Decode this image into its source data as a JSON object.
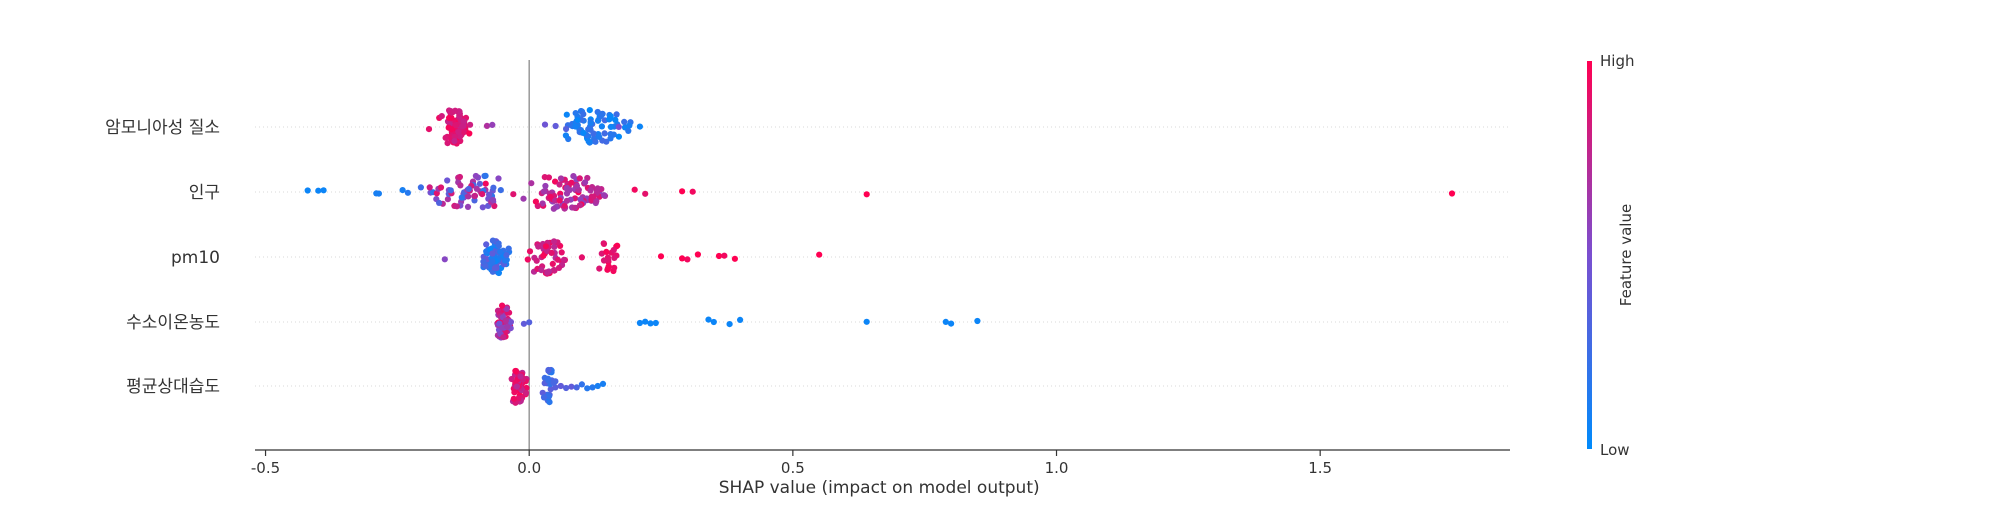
{
  "chart_data": {
    "type": "scatter",
    "subtype": "shap-beeswarm",
    "title": "",
    "xlabel": "SHAP value (impact on model output)",
    "xlim": [
      -0.52,
      1.86
    ],
    "xticks": [
      -0.5,
      0.0,
      0.5,
      1.0,
      1.5
    ],
    "xtick_labels": [
      "-0.5",
      "0.0",
      "0.5",
      "1.0",
      "1.5"
    ],
    "zero_line": 0.0,
    "grid": false,
    "colorbar": {
      "label": "Feature value",
      "high_label": "High",
      "low_label": "Low",
      "high_color": "#ff0052",
      "mid_color": "#7a4fd0",
      "low_color": "#008bfb",
      "placement": "right"
    },
    "features": [
      {
        "name": "암모니아성 질소",
        "clusters": [
          {
            "x_min": -0.18,
            "x_max": -0.1,
            "center": -0.145,
            "count": 85,
            "v_min": 0.75,
            "v_max": 1.0
          },
          {
            "x_min": 0.03,
            "x_max": 0.21,
            "center": 0.12,
            "count": 75,
            "v_min": 0.0,
            "v_max": 0.3
          }
        ],
        "points": [
          {
            "x": -0.19,
            "v": 0.9
          },
          {
            "x": -0.08,
            "v": 0.7
          },
          {
            "x": -0.07,
            "v": 0.6
          },
          {
            "x": 0.03,
            "v": 0.45
          },
          {
            "x": 0.05,
            "v": 0.4
          },
          {
            "x": 0.07,
            "v": 0.35
          },
          {
            "x": 0.17,
            "v": 0.5
          },
          {
            "x": 0.19,
            "v": 0.1
          },
          {
            "x": 0.21,
            "v": 0.05
          }
        ]
      },
      {
        "name": "인구",
        "clusters": [
          {
            "x_min": -0.22,
            "x_max": -0.01,
            "center": -0.1,
            "count": 70,
            "v_min": 0.1,
            "v_max": 1.0
          },
          {
            "x_min": -0.02,
            "x_max": 0.18,
            "center": 0.06,
            "count": 95,
            "v_min": 0.55,
            "v_max": 1.0
          }
        ],
        "points": [
          {
            "x": -0.42,
            "v": 0.05
          },
          {
            "x": -0.4,
            "v": 0.05
          },
          {
            "x": -0.39,
            "v": 0.05
          },
          {
            "x": -0.29,
            "v": 0.1
          },
          {
            "x": -0.285,
            "v": 0.1
          },
          {
            "x": -0.24,
            "v": 0.1
          },
          {
            "x": -0.23,
            "v": 0.15
          },
          {
            "x": 0.2,
            "v": 0.95
          },
          {
            "x": 0.22,
            "v": 0.9
          },
          {
            "x": 0.29,
            "v": 1.0
          },
          {
            "x": 0.31,
            "v": 0.95
          },
          {
            "x": 0.64,
            "v": 1.0
          },
          {
            "x": 1.75,
            "v": 1.0
          }
        ]
      },
      {
        "name": "pm10",
        "clusters": [
          {
            "x_min": -0.1,
            "x_max": -0.03,
            "center": -0.065,
            "count": 70,
            "v_min": 0.0,
            "v_max": 0.45
          },
          {
            "x_min": -0.02,
            "x_max": 0.09,
            "center": 0.03,
            "count": 45,
            "v_min": 0.7,
            "v_max": 1.0
          },
          {
            "x_min": 0.12,
            "x_max": 0.18,
            "center": 0.15,
            "count": 20,
            "v_min": 0.85,
            "v_max": 1.0
          }
        ],
        "points": [
          {
            "x": -0.16,
            "v": 0.55
          },
          {
            "x": 0.1,
            "v": 0.9
          },
          {
            "x": 0.25,
            "v": 1.0
          },
          {
            "x": 0.29,
            "v": 1.0
          },
          {
            "x": 0.3,
            "v": 0.95
          },
          {
            "x": 0.32,
            "v": 1.0
          },
          {
            "x": 0.36,
            "v": 1.0
          },
          {
            "x": 0.37,
            "v": 0.95
          },
          {
            "x": 0.39,
            "v": 1.0
          },
          {
            "x": 0.55,
            "v": 1.0
          }
        ]
      },
      {
        "name": "수소이온농도",
        "clusters": [
          {
            "x_min": -0.07,
            "x_max": -0.03,
            "center": -0.05,
            "count": 60,
            "v_min": 0.4,
            "v_max": 1.0
          }
        ],
        "points": [
          {
            "x": -0.01,
            "v": 0.4
          },
          {
            "x": 0.0,
            "v": 0.35
          },
          {
            "x": 0.21,
            "v": 0.05
          },
          {
            "x": 0.22,
            "v": 0.05
          },
          {
            "x": 0.23,
            "v": 0.05
          },
          {
            "x": 0.24,
            "v": 0.05
          },
          {
            "x": 0.34,
            "v": 0.05
          },
          {
            "x": 0.35,
            "v": 0.05
          },
          {
            "x": 0.38,
            "v": 0.05
          },
          {
            "x": 0.4,
            "v": 0.05
          },
          {
            "x": 0.64,
            "v": 0.05
          },
          {
            "x": 0.79,
            "v": 0.05
          },
          {
            "x": 0.8,
            "v": 0.05
          },
          {
            "x": 0.85,
            "v": 0.05
          }
        ]
      },
      {
        "name": "평균상대습도",
        "clusters": [
          {
            "x_min": -0.04,
            "x_max": 0.0,
            "center": -0.025,
            "count": 60,
            "v_min": 0.7,
            "v_max": 1.0
          },
          {
            "x_min": 0.02,
            "x_max": 0.06,
            "center": 0.04,
            "count": 30,
            "v_min": 0.1,
            "v_max": 0.4
          }
        ],
        "points": [
          {
            "x": 0.06,
            "v": 0.4
          },
          {
            "x": 0.07,
            "v": 0.35
          },
          {
            "x": 0.08,
            "v": 0.4
          },
          {
            "x": 0.09,
            "v": 0.3
          },
          {
            "x": 0.1,
            "v": 0.2
          },
          {
            "x": 0.11,
            "v": 0.15
          },
          {
            "x": 0.12,
            "v": 0.15
          },
          {
            "x": 0.13,
            "v": 0.1
          },
          {
            "x": 0.14,
            "v": 0.1
          }
        ]
      }
    ]
  }
}
